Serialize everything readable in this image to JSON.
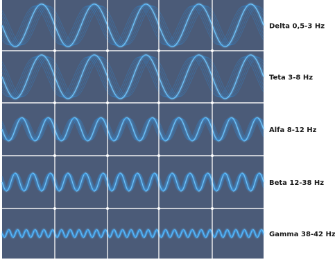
{
  "figure": {
    "panel_color": "#4b5b78",
    "grid_color": "#f2f2f2",
    "wave_color": "#6ec6ff",
    "wave_glow_color": "#2f8fe0",
    "columns": 5,
    "bands": [
      {
        "label": "Delta 0,5-3 Hz",
        "cycles_per_cell": 1
      },
      {
        "label": "Teta 3-8 Hz",
        "cycles_per_cell": 1
      },
      {
        "label": "Alfa 8-12 Hz",
        "cycles_per_cell": 2
      },
      {
        "label": "Beta 12-38 Hz",
        "cycles_per_cell": 3
      },
      {
        "label": "Gamma 38-42 Hz",
        "cycles_per_cell": 6
      }
    ]
  }
}
